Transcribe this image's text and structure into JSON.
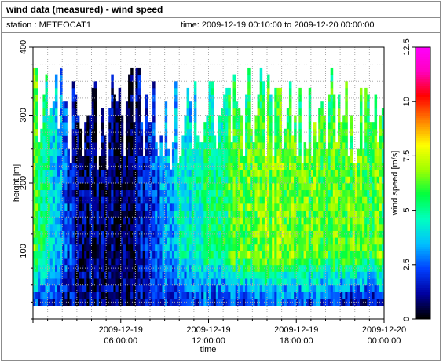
{
  "header": {
    "title": "wind data (measured) - wind speed",
    "station_text": "station : METEOCAT1",
    "time_text": "time: 2009-12-19 00:10:00 to 2009-12-20 00:00:00"
  },
  "chart_data": {
    "type": "heatmap",
    "title": "wind data (measured) - wind speed",
    "xlabel": "time",
    "ylabel": "height [m]",
    "colorbar_label": "wind speed [m/s]",
    "ylim": [
      0,
      400
    ],
    "xlim_hours": [
      0,
      24
    ],
    "x_ticks": [
      {
        "hour": 6,
        "line1": "2009-12-19",
        "line2": "06:00:00"
      },
      {
        "hour": 12,
        "line1": "2009-12-19",
        "line2": "12:00:00"
      },
      {
        "hour": 18,
        "line1": "2009-12-19",
        "line2": "18:00:00"
      },
      {
        "hour": 24,
        "line1": "2009-12-20",
        "line2": "00:00:00"
      }
    ],
    "y_ticks": [
      100,
      200,
      300,
      400
    ],
    "y_tick_labels": [
      "100",
      "200",
      "300",
      "400"
    ],
    "colorbar_range": [
      0,
      12.5
    ],
    "colorbar_ticks": [
      0,
      2.5,
      5,
      7.5,
      10,
      12.5
    ],
    "colorbar_tick_labels": [
      "0",
      "2.5",
      "5",
      "7.5",
      "10",
      "12.5"
    ],
    "colormap": [
      "#000000",
      "#0000a0",
      "#0040ff",
      "#00c0ff",
      "#00ffc0",
      "#00ff40",
      "#a0ff00",
      "#ffff00",
      "#ff8000",
      "#ff0000",
      "#ff00c0",
      "#ff00ff"
    ],
    "time_step_minutes": 10,
    "height_range_m": [
      20,
      370
    ],
    "wind_speed_profile_by_hour": [
      {
        "hour": 0,
        "speed_near_top": 6.5,
        "speed_mid": 6.0,
        "speed_low": 2.0
      },
      {
        "hour": 2,
        "speed_near_top": 2.5,
        "speed_mid": 3.0,
        "speed_low": 1.5
      },
      {
        "hour": 3,
        "speed_near_top": 1.0,
        "speed_mid": 1.0,
        "speed_low": 1.0
      },
      {
        "hour": 6,
        "speed_near_top": 0.5,
        "speed_mid": 0.5,
        "speed_low": 0.8
      },
      {
        "hour": 8,
        "speed_near_top": 1.5,
        "speed_mid": 2.0,
        "speed_low": 1.5
      },
      {
        "hour": 10,
        "speed_near_top": 3.0,
        "speed_mid": 4.0,
        "speed_low": 2.0
      },
      {
        "hour": 12,
        "speed_near_top": 4.0,
        "speed_mid": 5.0,
        "speed_low": 2.0
      },
      {
        "hour": 14,
        "speed_near_top": 4.5,
        "speed_mid": 6.0,
        "speed_low": 2.0
      },
      {
        "hour": 16,
        "speed_near_top": 5.0,
        "speed_mid": 6.5,
        "speed_low": 2.5
      },
      {
        "hour": 18,
        "speed_near_top": 5.0,
        "speed_mid": 6.5,
        "speed_low": 2.5
      },
      {
        "hour": 20,
        "speed_near_top": 5.5,
        "speed_mid": 6.0,
        "speed_low": 2.0
      },
      {
        "hour": 22,
        "speed_near_top": 6.0,
        "speed_mid": 6.5,
        "speed_low": 1.5
      },
      {
        "hour": 24,
        "speed_near_top": 5.0,
        "speed_mid": 6.0,
        "speed_low": 1.5
      }
    ],
    "grid": true
  }
}
